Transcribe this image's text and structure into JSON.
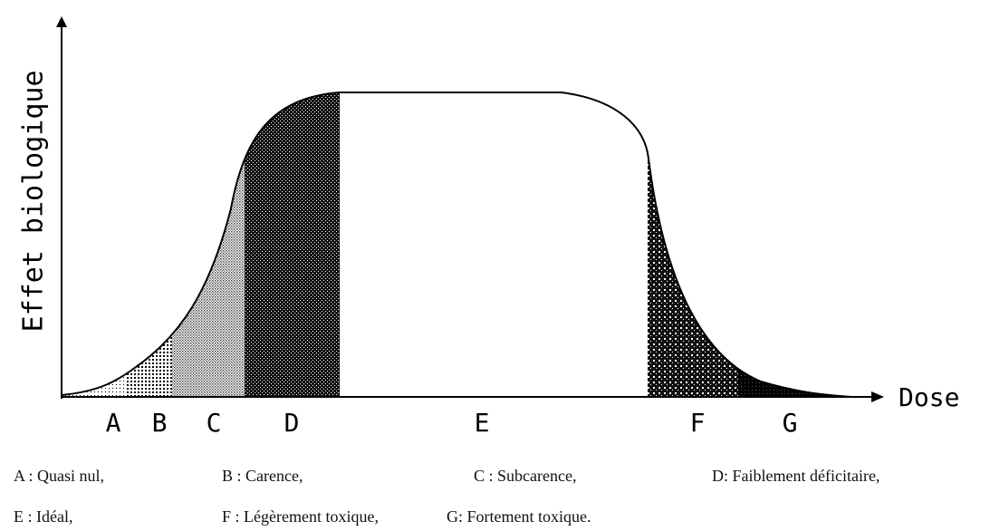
{
  "y_axis_label": "Effet biologique",
  "x_axis_label": "Dose",
  "zones": [
    "A",
    "B",
    "C",
    "D",
    "E",
    "F",
    "G"
  ],
  "legend": [
    "A : Quasi nul,",
    "B : Carence,",
    "C : Subcarence,",
    "D: Faiblement déficitaire,",
    "E : Idéal,",
    "F : Légèrement toxique,",
    "G: Fortement toxique."
  ]
}
